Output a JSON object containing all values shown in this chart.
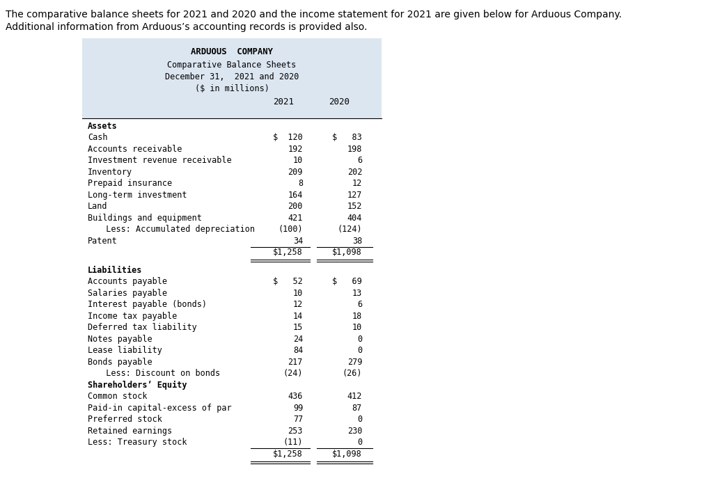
{
  "intro_text_line1": "The comparative balance sheets for 2021 and 2020 and the income statement for 2021 are given below for Arduous Company.",
  "intro_text_line2": "Additional information from Arduous’s accounting records is provided also.",
  "title_lines": [
    "ARDUOUS  COMPANY",
    "Comparative Balance Sheets",
    "December 31,  2021 and 2020",
    "($ in millions)"
  ],
  "background_color": "#dce6f1",
  "page_bg": "#ffffff",
  "rows": [
    {
      "label": "Assets",
      "v2021": "",
      "v2020": "",
      "style": "bold"
    },
    {
      "label": "Cash",
      "v2021": "$  120",
      "v2020": "$   83",
      "style": "dollar"
    },
    {
      "label": "Accounts receivable",
      "v2021": "192",
      "v2020": "198",
      "style": "normal"
    },
    {
      "label": "Investment revenue receivable",
      "v2021": "10",
      "v2020": "6",
      "style": "normal"
    },
    {
      "label": "Inventory",
      "v2021": "209",
      "v2020": "202",
      "style": "normal"
    },
    {
      "label": "Prepaid insurance",
      "v2021": "8",
      "v2020": "12",
      "style": "normal"
    },
    {
      "label": "Long-term investment",
      "v2021": "164",
      "v2020": "127",
      "style": "normal"
    },
    {
      "label": "Land",
      "v2021": "200",
      "v2020": "152",
      "style": "normal"
    },
    {
      "label": "Buildings and equipment",
      "v2021": "421",
      "v2020": "404",
      "style": "normal"
    },
    {
      "label": "  Less: Accumulated depreciation",
      "v2021": "(100)",
      "v2020": "(124)",
      "style": "indent"
    },
    {
      "label": "Patent",
      "v2021": "34",
      "v2020": "38",
      "style": "normal"
    },
    {
      "label": "",
      "v2021": "$1,258",
      "v2020": "$1,098",
      "style": "total"
    },
    {
      "label": "",
      "v2021": "",
      "v2020": "",
      "style": "spacer"
    },
    {
      "label": "Liabilities",
      "v2021": "",
      "v2020": "",
      "style": "bold"
    },
    {
      "label": "Accounts payable",
      "v2021": "$   52",
      "v2020": "$   69",
      "style": "dollar"
    },
    {
      "label": "Salaries payable",
      "v2021": "10",
      "v2020": "13",
      "style": "normal"
    },
    {
      "label": "Interest payable (bonds)",
      "v2021": "12",
      "v2020": "6",
      "style": "normal"
    },
    {
      "label": "Income tax payable",
      "v2021": "14",
      "v2020": "18",
      "style": "normal"
    },
    {
      "label": "Deferred tax liability",
      "v2021": "15",
      "v2020": "10",
      "style": "normal"
    },
    {
      "label": "Notes payable",
      "v2021": "24",
      "v2020": "0",
      "style": "normal"
    },
    {
      "label": "Lease liability",
      "v2021": "84",
      "v2020": "0",
      "style": "normal"
    },
    {
      "label": "Bonds payable",
      "v2021": "217",
      "v2020": "279",
      "style": "normal"
    },
    {
      "label": "  Less: Discount on bonds",
      "v2021": "(24)",
      "v2020": "(26)",
      "style": "indent"
    },
    {
      "label": "Shareholders’ Equity",
      "v2021": "",
      "v2020": "",
      "style": "bold"
    },
    {
      "label": "Common stock",
      "v2021": "436",
      "v2020": "412",
      "style": "normal"
    },
    {
      "label": "Paid-in capital-excess of par",
      "v2021": "99",
      "v2020": "87",
      "style": "normal"
    },
    {
      "label": "Preferred stock",
      "v2021": "77",
      "v2020": "0",
      "style": "normal"
    },
    {
      "label": "Retained earnings",
      "v2021": "253",
      "v2020": "230",
      "style": "normal"
    },
    {
      "label": "Less: Treasury stock",
      "v2021": "(11)",
      "v2020": "0",
      "style": "normal"
    },
    {
      "label": "",
      "v2021": "$1,258",
      "v2020": "$1,098",
      "style": "total_final"
    }
  ]
}
